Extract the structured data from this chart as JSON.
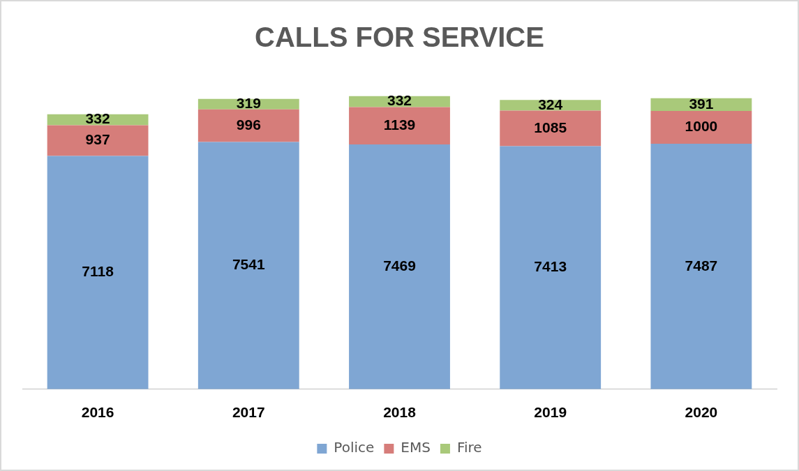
{
  "chart_data": {
    "type": "bar",
    "title": "CALLS FOR SERVICE",
    "stacked": true,
    "data_labels": true,
    "legend": "bottom",
    "tick_labels": "x",
    "grid": false,
    "categories": [
      "2016",
      "2017",
      "2018",
      "2019",
      "2020"
    ],
    "series": [
      {
        "name": "Police",
        "color": "#7fa6d3",
        "values": [
          7118,
          7541,
          7469,
          7413,
          7487
        ]
      },
      {
        "name": "EMS",
        "color": "#d67d7a",
        "values": [
          937,
          996,
          1139,
          1085,
          1000
        ]
      },
      {
        "name": "Fire",
        "color": "#a9c97a",
        "values": [
          332,
          319,
          332,
          324,
          391
        ]
      }
    ]
  }
}
